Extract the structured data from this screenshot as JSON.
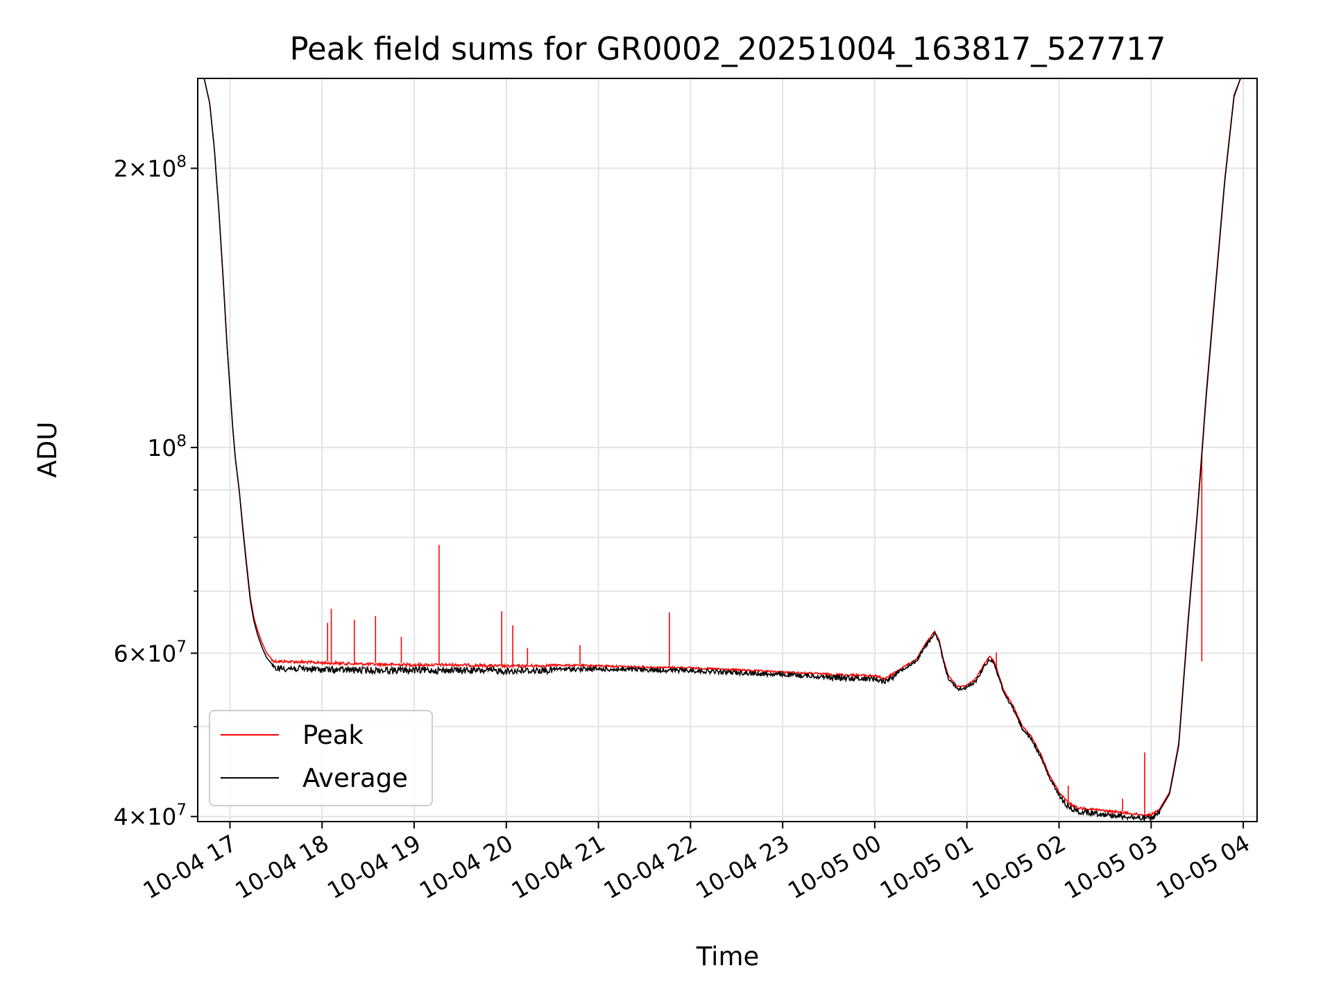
{
  "chart_data": {
    "type": "line",
    "title": "Peak field sums for GR0002_20251004_163817_527717",
    "xlabel": "Time",
    "ylabel": "ADU",
    "yscale": "log",
    "ylim": [
      39500000,
      250000000
    ],
    "xlim_hours": [
      16.65,
      28.15
    ],
    "grid": true,
    "legend_position": "lower-left",
    "x_ticks": [
      {
        "label": "10-04 17",
        "hour": 17
      },
      {
        "label": "10-04 18",
        "hour": 18
      },
      {
        "label": "10-04 19",
        "hour": 19
      },
      {
        "label": "10-04 20",
        "hour": 20
      },
      {
        "label": "10-04 21",
        "hour": 21
      },
      {
        "label": "10-04 22",
        "hour": 22
      },
      {
        "label": "10-04 23",
        "hour": 23
      },
      {
        "label": "10-05 00",
        "hour": 24
      },
      {
        "label": "10-05 01",
        "hour": 25
      },
      {
        "label": "10-05 02",
        "hour": 26
      },
      {
        "label": "10-05 03",
        "hour": 27
      },
      {
        "label": "10-05 04",
        "hour": 28
      }
    ],
    "y_ticks": [
      {
        "mantissa": "4",
        "exp": "7",
        "value": 40000000
      },
      {
        "mantissa": "6",
        "exp": "7",
        "value": 60000000
      },
      {
        "mantissa": "",
        "exp": "8",
        "value": 100000000
      },
      {
        "mantissa": "2",
        "exp": "8",
        "value": 200000000
      }
    ],
    "y_minor_ticks": [
      50000000,
      70000000,
      80000000,
      90000000
    ],
    "series": [
      {
        "name": "Peak",
        "color": "#ff0000",
        "hours": [
          16.65,
          16.72,
          16.78,
          16.83,
          16.88,
          16.93,
          16.97,
          17.0,
          17.03,
          17.06,
          17.1,
          17.14,
          17.18,
          17.22,
          17.26,
          17.3,
          17.35,
          17.4,
          17.45,
          17.5,
          17.6,
          17.8,
          18.0,
          18.5,
          19.0,
          19.5,
          20.0,
          20.5,
          21.0,
          21.5,
          22.0,
          22.5,
          23.0,
          23.5,
          24.0,
          24.1,
          24.2,
          24.3,
          24.45,
          24.55,
          24.65,
          24.7,
          24.75,
          24.8,
          24.9,
          25.0,
          25.1,
          25.2,
          25.25,
          25.3,
          25.35,
          25.4,
          25.5,
          25.6,
          25.7,
          25.8,
          25.9,
          26.0,
          26.1,
          26.2,
          26.3,
          26.5,
          26.7,
          26.9,
          27.0,
          27.1,
          27.2,
          27.3,
          27.4,
          27.5,
          27.6,
          27.7,
          27.8,
          27.9,
          27.97,
          28.15
        ],
        "values": [
          250000000,
          250000000,
          235000000,
          210000000,
          180000000,
          150000000,
          128000000,
          116000000,
          105000000,
          97000000,
          90000000,
          82000000,
          75000000,
          69000000,
          65500000,
          63500000,
          61500000,
          60000000,
          59200000,
          59000000,
          59000000,
          58900000,
          58800000,
          58600000,
          58500000,
          58500000,
          58300000,
          58400000,
          58300000,
          58100000,
          58000000,
          57700000,
          57400000,
          57100000,
          56900000,
          56500000,
          57200000,
          58000000,
          59200000,
          61500000,
          63500000,
          62000000,
          59000000,
          56800000,
          55300000,
          55500000,
          56500000,
          58800000,
          59600000,
          58800000,
          56800000,
          54800000,
          52800000,
          50200000,
          48900000,
          46800000,
          44300000,
          42600000,
          41500000,
          41000000,
          40900000,
          40700000,
          40500000,
          40300000,
          40300000,
          40900000,
          42500000,
          48000000,
          65000000,
          85000000,
          115000000,
          150000000,
          195000000,
          240000000,
          250000000,
          250000000
        ],
        "spikes": [
          {
            "hour": 18.06,
            "value": 64700000
          },
          {
            "hour": 18.1,
            "value": 67000000
          },
          {
            "hour": 18.35,
            "value": 65200000
          },
          {
            "hour": 18.58,
            "value": 65800000
          },
          {
            "hour": 18.86,
            "value": 62500000
          },
          {
            "hour": 19.27,
            "value": 78500000
          },
          {
            "hour": 19.95,
            "value": 66600000
          },
          {
            "hour": 20.07,
            "value": 64300000
          },
          {
            "hour": 20.23,
            "value": 60800000
          },
          {
            "hour": 20.8,
            "value": 61200000
          },
          {
            "hour": 21.77,
            "value": 66400000
          },
          {
            "hour": 25.32,
            "value": 60100000
          },
          {
            "hour": 26.1,
            "value": 43200000
          },
          {
            "hour": 26.69,
            "value": 41800000
          },
          {
            "hour": 26.93,
            "value": 46900000
          },
          {
            "hour": 27.55,
            "value": 58800000
          }
        ]
      },
      {
        "name": "Average",
        "color": "#000000",
        "hours": [
          16.65,
          16.72,
          16.78,
          16.83,
          16.88,
          16.93,
          16.97,
          17.0,
          17.03,
          17.06,
          17.1,
          17.14,
          17.18,
          17.22,
          17.26,
          17.3,
          17.35,
          17.4,
          17.45,
          17.5,
          17.6,
          17.8,
          18.0,
          18.5,
          19.0,
          19.5,
          20.0,
          20.5,
          21.0,
          21.5,
          22.0,
          22.5,
          23.0,
          23.5,
          24.0,
          24.1,
          24.2,
          24.3,
          24.45,
          24.55,
          24.65,
          24.7,
          24.75,
          24.8,
          24.9,
          25.0,
          25.1,
          25.2,
          25.25,
          25.3,
          25.35,
          25.4,
          25.5,
          25.6,
          25.7,
          25.8,
          25.9,
          26.0,
          26.1,
          26.2,
          26.3,
          26.5,
          26.7,
          26.9,
          27.0,
          27.1,
          27.2,
          27.3,
          27.4,
          27.5,
          27.6,
          27.7,
          27.8,
          27.9,
          27.97,
          28.15
        ],
        "values": [
          250000000,
          250000000,
          235000000,
          210000000,
          180000000,
          150000000,
          128000000,
          116000000,
          105000000,
          97000000,
          90000000,
          81500000,
          74500000,
          68500000,
          65000000,
          62800000,
          60800000,
          59300000,
          58500000,
          58300000,
          58300000,
          58200000,
          58100000,
          58000000,
          58000000,
          58000000,
          57900000,
          58000000,
          58000000,
          57900000,
          57800000,
          57500000,
          57200000,
          56900000,
          56700000,
          56300000,
          57000000,
          57900000,
          59100000,
          61300000,
          63300000,
          61800000,
          58800000,
          56600000,
          55100000,
          55300000,
          56300000,
          58600000,
          59400000,
          58600000,
          56600000,
          54600000,
          52600000,
          50000000,
          48700000,
          46600000,
          44100000,
          42400000,
          41300000,
          40800000,
          40700000,
          40500000,
          40300000,
          40100000,
          40100000,
          40700000,
          42300000,
          47700000,
          64500000,
          84500000,
          114000000,
          149000000,
          194000000,
          239000000,
          250000000,
          250000000
        ]
      }
    ]
  }
}
